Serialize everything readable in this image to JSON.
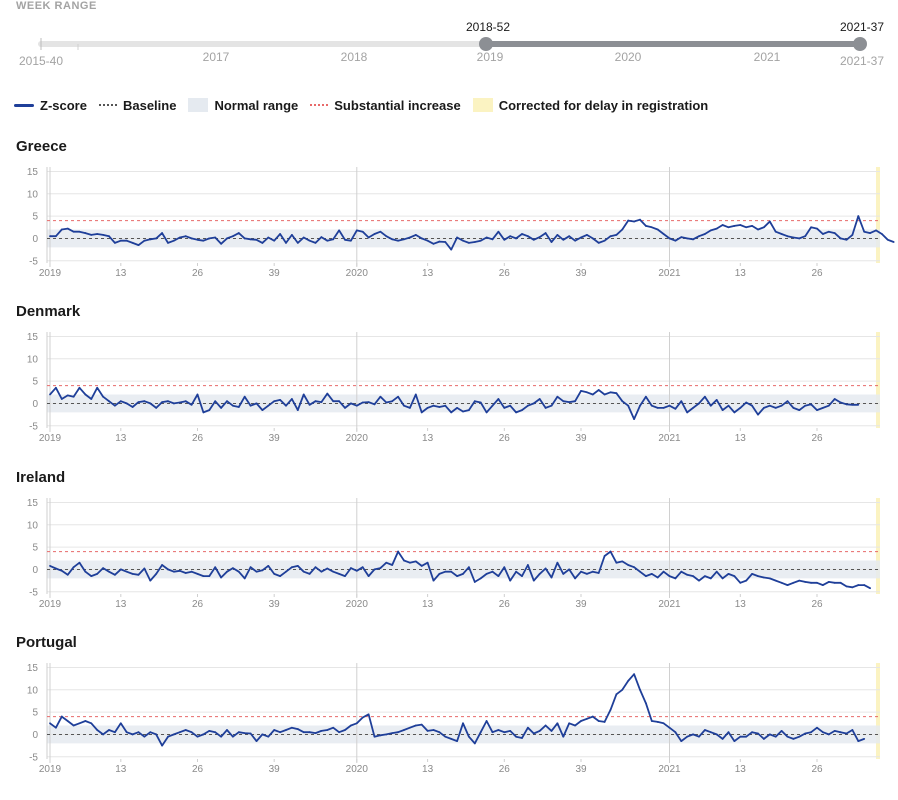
{
  "week_range": {
    "label": "WEEK RANGE",
    "start_label": "2015-40",
    "end_label": "2021-37",
    "selected_start": "2018-52",
    "selected_end": "2021-37",
    "year_labels": [
      "2017",
      "2018",
      "2019",
      "2020",
      "2021"
    ]
  },
  "legend": {
    "zscore": "Z-score",
    "baseline": "Baseline",
    "normal_range": "Normal range",
    "substantial_increase": "Substantial increase",
    "corrected": "Corrected for delay in registration"
  },
  "colors": {
    "zscore_line": "#1f3f99",
    "baseline": "#555555",
    "normal_range": "#e5eaf0",
    "substantial_increase": "#e86a6a",
    "corrected_band": "#fbf3c2",
    "slider_active": "#8c8f94",
    "slider_track": "#e4e4e4"
  },
  "chart_data": [
    {
      "type": "line",
      "title": "Greece",
      "x_tick_labels": [
        "2019",
        "13",
        "26",
        "39",
        "2020",
        "13",
        "26",
        "39",
        "2021",
        "13",
        "26"
      ],
      "y_ticks": [
        -5,
        0,
        5,
        10,
        15
      ],
      "ylim": [
        -5.5,
        16
      ],
      "normal_range": [
        -2,
        2
      ],
      "baseline": 0,
      "substantial_increase": 4,
      "corrected_weeks_from": 140,
      "x_start_week": "2018-52",
      "series": [
        {
          "values": [
            0.5,
            0.5,
            2,
            2.2,
            1.5,
            1.5,
            1.2,
            0.8,
            1,
            0.8,
            0.5,
            -1,
            -0.5,
            -0.5,
            -1,
            -1.5,
            -0.5,
            -0.2,
            0,
            1.2,
            -1,
            -0.5,
            0.2,
            0.5,
            0,
            -0.3,
            -0.5,
            0,
            0.2,
            -1.2,
            0,
            0.5,
            1.2,
            0,
            -0.2,
            -0.3,
            -1,
            0.2,
            -0.5,
            1,
            -1,
            0.8,
            -1,
            0.2,
            -0.5,
            -1,
            0.3,
            -0.5,
            -0.2,
            1.8,
            -0.3,
            -0.5,
            1.8,
            1.5,
            0.2,
            1,
            1.5,
            0.5,
            -0.2,
            -0.5,
            -0.2,
            0.2,
            0.8,
            0,
            -0.5,
            -1.2,
            -0.7,
            -0.8,
            -2.5,
            0.2,
            -0.5,
            -1,
            -0.8,
            -0.5,
            0.2,
            -0.2,
            1.5,
            -0.3,
            0.5,
            0,
            1,
            0.5,
            -0.3,
            0.3,
            1.2,
            -0.8,
            0.8,
            -0.3,
            0.5,
            -0.5,
            0.2,
            0.8,
            0,
            -1,
            -0.5,
            0.5,
            0.8,
            2,
            4,
            3.8,
            4.2,
            2.8,
            2.5,
            2,
            1,
            0,
            -0.5,
            0.3,
            0,
            -0.2,
            0.5,
            1,
            1.8,
            2.2,
            3,
            2.5,
            2.8,
            3,
            2.5,
            2.8,
            2,
            2.5,
            3.8,
            1.5,
            1,
            0.5,
            0.2,
            0,
            0.5,
            2.5,
            2.2,
            1,
            1.5,
            1.2,
            0,
            -0.3,
            0.8,
            5,
            1.5,
            1.2,
            1.8,
            1,
            -0.3,
            -0.8
          ]
        }
      ]
    },
    {
      "type": "line",
      "title": "Denmark",
      "x_tick_labels": [
        "2019",
        "13",
        "26",
        "39",
        "2020",
        "13",
        "26",
        "39",
        "2021",
        "13",
        "26"
      ],
      "y_ticks": [
        -5,
        0,
        5,
        10,
        15
      ],
      "ylim": [
        -5.5,
        16
      ],
      "normal_range": [
        -2,
        2
      ],
      "baseline": 0,
      "substantial_increase": 4,
      "corrected_weeks_from": 140,
      "x_start_week": "2018-52",
      "series": [
        {
          "values": [
            2,
            3.5,
            1,
            1.8,
            1.5,
            3.5,
            2,
            1,
            3.5,
            1.5,
            0.5,
            -0.5,
            0.5,
            0,
            -0.8,
            0.3,
            0.5,
            0,
            -1,
            0.3,
            0.5,
            0,
            0.2,
            0.5,
            -0.3,
            2,
            -2,
            -1.5,
            0.5,
            -1,
            0.5,
            -0.5,
            -0.8,
            1.5,
            -0.5,
            0,
            -1.5,
            -0.5,
            0.5,
            0.8,
            -0.5,
            1,
            -1.5,
            2,
            -0.3,
            0.5,
            0.3,
            2.2,
            0.5,
            0.5,
            -1,
            0,
            -0.5,
            0.2,
            0.3,
            -0.2,
            1.5,
            0.2,
            0.5,
            1.5,
            -0.5,
            -1,
            2,
            -2,
            -1,
            -0.5,
            -0.8,
            -0.5,
            -2,
            -1,
            -1.8,
            -1.5,
            0.5,
            0.2,
            -2,
            -0.5,
            1,
            -1,
            -0.5,
            -2,
            -1.5,
            -0.5,
            0,
            1,
            -1,
            -0.5,
            1.5,
            0.5,
            0.3,
            0.5,
            2.8,
            2.5,
            2,
            3,
            2,
            2.5,
            2.3,
            0.5,
            -0.5,
            -3.5,
            -0.5,
            1.5,
            -0.5,
            -1,
            -1,
            -0.5,
            -1.2,
            0.5,
            -2,
            -1,
            0,
            1.5,
            -0.5,
            0.8,
            -1.5,
            -0.5,
            -2,
            -1,
            0.2,
            -0.5,
            -2.5,
            -1,
            -0.5,
            -1,
            -0.5,
            0.5,
            -1,
            -1.5,
            -0.5,
            -0.2,
            -1.5,
            -1,
            -0.5,
            1,
            0.2,
            -0.2,
            -0.3,
            -0.3
          ]
        }
      ]
    },
    {
      "type": "line",
      "title": "Ireland",
      "x_tick_labels": [
        "2019",
        "13",
        "26",
        "39",
        "2020",
        "13",
        "26",
        "39",
        "2021",
        "13",
        "26"
      ],
      "y_ticks": [
        -5,
        0,
        5,
        10,
        15
      ],
      "ylim": [
        -5.5,
        16
      ],
      "normal_range": [
        -2,
        2
      ],
      "baseline": 0,
      "substantial_increase": 4,
      "corrected_weeks_from": 140,
      "x_start_week": "2018-52",
      "series": [
        {
          "values": [
            0.8,
            0.2,
            -0.3,
            -1.2,
            0.5,
            1.5,
            -0.5,
            -1.5,
            -1,
            0.3,
            -0.5,
            -1.2,
            0,
            -0.5,
            -1,
            -1.2,
            0.2,
            -2.5,
            -1,
            1,
            0,
            -0.5,
            -0.3,
            -0.8,
            -0.5,
            -1,
            -1.5,
            -1.5,
            0.5,
            -1.8,
            -0.5,
            0.3,
            -0.5,
            -2,
            0.5,
            -0.5,
            -0.2,
            0.8,
            -1,
            -1.5,
            -0.5,
            0.5,
            0.8,
            -0.5,
            -1,
            0.5,
            -0.5,
            0.2,
            -0.5,
            -1,
            -1.5,
            0.3,
            -0.3,
            0.5,
            -1.5,
            0,
            0.3,
            1.5,
            1,
            4,
            2,
            1.5,
            1.8,
            0.8,
            1.5,
            -2.5,
            -1,
            -0.5,
            -0.5,
            -1.5,
            -1,
            0.5,
            -2.8,
            -2,
            -1,
            -0.5,
            -1.5,
            0.5,
            -2.5,
            -0.5,
            -1.5,
            1,
            -2.5,
            -1,
            0.2,
            -1.8,
            1.5,
            -1,
            0,
            -2,
            -0.5,
            -1,
            -0.5,
            -0.8,
            3,
            4,
            1.5,
            1.8,
            1,
            0.5,
            -0.5,
            -1.5,
            -1,
            -1.8,
            -0.5,
            -1.5,
            -2,
            -0.5,
            -1.2,
            -1.5,
            -2.5,
            -1.5,
            -2,
            -0.5,
            -2,
            -1,
            -1.5,
            -3,
            -2.5,
            -1,
            -1.5,
            -1.8,
            -2,
            -2.5,
            -3,
            -3.5,
            -3,
            -2.5,
            -2.8,
            -3,
            -3,
            -3.5,
            -2.8,
            -3,
            -3,
            -3.8,
            -4,
            -3.5,
            -3.5,
            -4.2
          ]
        }
      ]
    },
    {
      "type": "line",
      "title": "Portugal",
      "x_tick_labels": [
        "2019",
        "13",
        "26",
        "39",
        "2020",
        "13",
        "26",
        "39",
        "2021",
        "13",
        "26"
      ],
      "y_ticks": [
        -5,
        0,
        5,
        10,
        15
      ],
      "ylim": [
        -5.5,
        16
      ],
      "normal_range": [
        -2,
        2
      ],
      "baseline": 0,
      "substantial_increase": 4,
      "corrected_weeks_from": 140,
      "x_start_week": "2018-52",
      "series": [
        {
          "values": [
            2.5,
            1.5,
            4,
            3,
            2,
            2.5,
            3,
            2.5,
            1,
            0,
            1,
            0.5,
            2.5,
            0.5,
            0,
            0.5,
            -0.5,
            0.5,
            0,
            -2.5,
            -0.5,
            0,
            0.5,
            1,
            0.5,
            -0.5,
            0,
            0.8,
            0.5,
            -0.5,
            1,
            -0.5,
            0.5,
            0.3,
            0.2,
            -1.5,
            0,
            -0.5,
            1,
            0.5,
            1,
            1.5,
            1.2,
            0.5,
            0.5,
            0.3,
            0.8,
            1,
            1.5,
            0.5,
            1,
            2,
            2.5,
            3.8,
            4.5,
            -0.5,
            -0.2,
            0,
            0.3,
            0.5,
            1,
            1.5,
            2,
            2.2,
            0.8,
            1,
            0.5,
            -0.5,
            -1,
            -1.5,
            2.5,
            -0.5,
            -2,
            0.5,
            3,
            0.5,
            1,
            0.5,
            0.8,
            -0.5,
            -0.8,
            1.5,
            0.2,
            0.8,
            2,
            0.8,
            2.5,
            -0.5,
            2.5,
            2,
            3,
            3.5,
            4,
            3,
            2.8,
            5.5,
            9,
            10,
            12,
            13.5,
            10,
            7,
            3,
            2.8,
            2.5,
            1.5,
            0.5,
            -1.5,
            -0.5,
            0,
            -0.5,
            1,
            0.5,
            0,
            -1,
            0.5,
            -1.5,
            -0.5,
            -0.5,
            0.5,
            0.2,
            -1,
            0,
            -0.5,
            0.8,
            -0.5,
            -1,
            -0.5,
            0.2,
            0.5,
            1.5,
            0.5,
            0,
            0.8,
            0.5,
            0.2,
            1,
            -1.5,
            -1
          ]
        }
      ]
    }
  ]
}
